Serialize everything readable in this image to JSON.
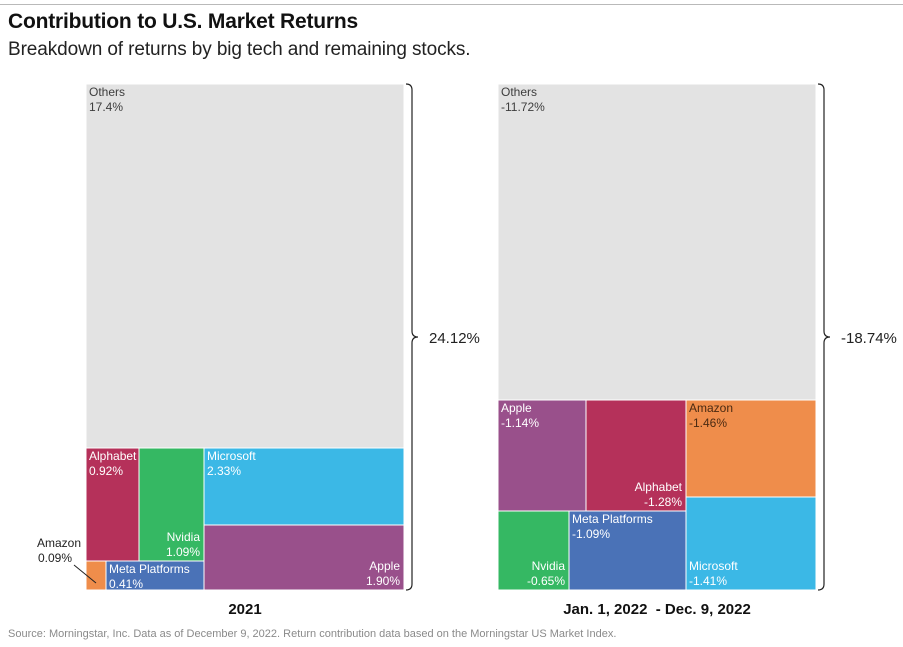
{
  "title": "Contribution to U.S. Market Returns",
  "subtitle": "Breakdown of returns by big tech and remaining stocks.",
  "source": "Source: Morningstar, Inc. Data as of December 9, 2022. Return contribution data based on the Morningstar US Market Index.",
  "colors": {
    "others": "#e3e3e3",
    "alphabet": "#b5315a",
    "nvidia": "#35b863",
    "microsoft": "#3bb8e6",
    "apple": "#99508b",
    "meta": "#4a72b7",
    "amazon": "#ef8d4b"
  },
  "chart_data": [
    {
      "type": "treemap",
      "period": "2021",
      "total": "24.12%",
      "segments": [
        {
          "name": "Others",
          "label": "17.4%",
          "value": 17.4,
          "color_key": "others"
        },
        {
          "name": "Apple",
          "label": "1.90%",
          "value": 1.9,
          "color_key": "apple"
        },
        {
          "name": "Microsoft",
          "label": "2.33%",
          "value": 2.33,
          "color_key": "microsoft"
        },
        {
          "name": "Alphabet",
          "label": "0.92%",
          "value": 0.92,
          "color_key": "alphabet"
        },
        {
          "name": "Nvidia",
          "label": "1.09%",
          "value": 1.09,
          "color_key": "nvidia"
        },
        {
          "name": "Meta Platforms",
          "label": "0.41%",
          "value": 0.41,
          "color_key": "meta"
        },
        {
          "name": "Amazon",
          "label": "0.09%",
          "value": 0.09,
          "color_key": "amazon"
        }
      ]
    },
    {
      "type": "treemap",
      "period": "Jan. 1, 2022  - Dec. 9, 2022",
      "total": "-18.74%",
      "segments": [
        {
          "name": "Others",
          "label": "-11.72%",
          "value": -11.72,
          "color_key": "others"
        },
        {
          "name": "Apple",
          "label": "-1.14%",
          "value": -1.14,
          "color_key": "apple"
        },
        {
          "name": "Alphabet",
          "label": "-1.28%",
          "value": -1.28,
          "color_key": "alphabet"
        },
        {
          "name": "Amazon",
          "label": "-1.46%",
          "value": -1.46,
          "color_key": "amazon"
        },
        {
          "name": "Nvidia",
          "label": "-0.65%",
          "value": -0.65,
          "color_key": "nvidia"
        },
        {
          "name": "Meta Platforms",
          "label": "-1.09%",
          "value": -1.09,
          "color_key": "meta"
        },
        {
          "name": "Microsoft",
          "label": "-1.41%",
          "value": -1.41,
          "color_key": "microsoft"
        }
      ]
    }
  ]
}
